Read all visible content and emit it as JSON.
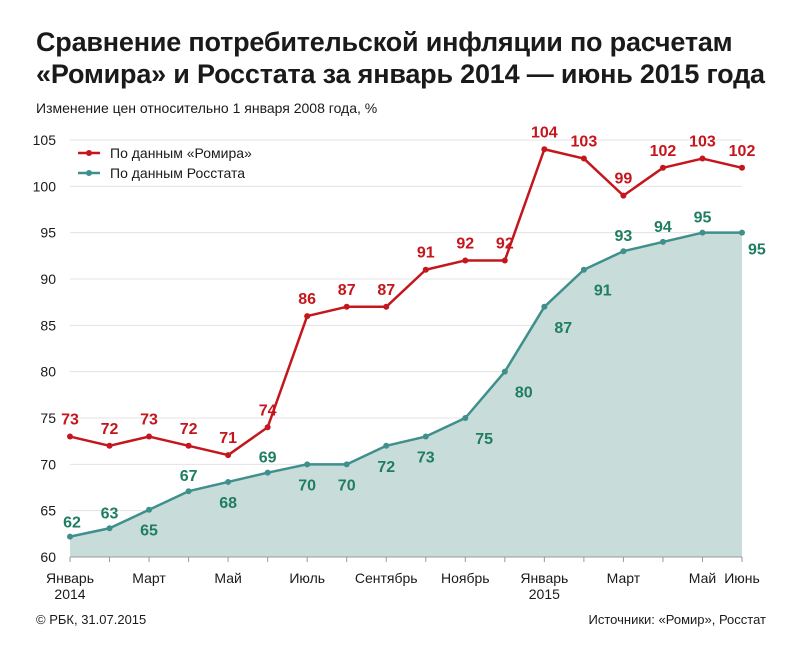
{
  "header": {
    "title_line1": "Сравнение потребительской инфляции по расчетам",
    "title_line2": "«Ромира» и Росстата за январь 2014 — июнь 2015 года",
    "subtitle": "Изменение цен относительно 1 января 2008 года, %"
  },
  "footer": {
    "copyright": "© РБК, 31.07.2015",
    "sources": "Источники: «Ромир», Росстат"
  },
  "colors": {
    "romir": "#c4161c",
    "rosstat": "#3f8f8c",
    "rosstat_labels": "#1f7d62",
    "area_fill": "#c8ddd9",
    "grid": "#e3e3e3",
    "axis": "#9a9a9a"
  },
  "chart_data": {
    "type": "line",
    "title": "Сравнение потребительской инфляции по расчетам «Ромира» и Росстата за январь 2014 — июнь 2015 года",
    "ylabel": "Изменение цен относительно 1 января 2008 года, %",
    "xlabel": "",
    "ylim": [
      60,
      105
    ],
    "yticks": [
      60,
      65,
      70,
      75,
      80,
      85,
      90,
      95,
      100,
      105
    ],
    "grid": true,
    "legend_position": "top-left",
    "x": [
      "2014-01",
      "2014-02",
      "2014-03",
      "2014-04",
      "2014-05",
      "2014-06",
      "2014-07",
      "2014-08",
      "2014-09",
      "2014-10",
      "2014-11",
      "2014-12",
      "2015-01",
      "2015-02",
      "2015-03",
      "2015-04",
      "2015-05",
      "2015-06"
    ],
    "x_tick_labels": [
      {
        "index": 0,
        "lines": [
          "Январь",
          "2014"
        ]
      },
      {
        "index": 2,
        "lines": [
          "Март"
        ]
      },
      {
        "index": 4,
        "lines": [
          "Май"
        ]
      },
      {
        "index": 6,
        "lines": [
          "Июль"
        ]
      },
      {
        "index": 8,
        "lines": [
          "Сентябрь"
        ]
      },
      {
        "index": 10,
        "lines": [
          "Ноябрь"
        ]
      },
      {
        "index": 12,
        "lines": [
          "Январь",
          "2015"
        ]
      },
      {
        "index": 14,
        "lines": [
          "Март"
        ]
      },
      {
        "index": 16,
        "lines": [
          "Май"
        ]
      },
      {
        "index": 17,
        "lines": [
          "Июнь"
        ]
      }
    ],
    "series": [
      {
        "name": "По данным «Ромира»",
        "style": "line",
        "values": [
          73,
          72,
          73,
          72,
          71,
          74,
          86,
          87,
          87,
          91,
          92,
          92,
          104,
          103,
          99,
          102,
          103,
          102
        ],
        "labels": [
          "73",
          "72",
          "73",
          "72",
          "71",
          "74",
          "86",
          "87",
          "87",
          "91",
          "92",
          "92",
          "104",
          "103",
          "99",
          "102",
          "103",
          "102"
        ]
      },
      {
        "name": "По данным Росстата",
        "style": "area",
        "values": [
          62.2,
          63.1,
          65.1,
          67.1,
          68.1,
          69.1,
          70.0,
          70.0,
          72.0,
          73.0,
          75.0,
          80.0,
          87.0,
          91.0,
          93.0,
          94.0,
          95.0,
          95.0
        ],
        "labels": [
          "62",
          "63",
          "65",
          "67",
          "68",
          "69",
          "70",
          "70",
          "72",
          "73",
          "75",
          "80",
          "87",
          "91",
          "93",
          "94",
          "95",
          "95"
        ]
      }
    ]
  }
}
